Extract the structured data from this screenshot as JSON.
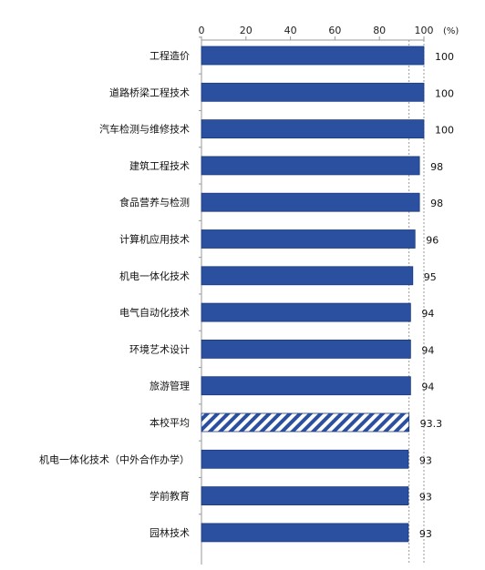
{
  "chart_data": {
    "type": "bar",
    "orientation": "horizontal",
    "unit": "(%)",
    "categories": [
      "工程造价",
      "道路桥梁工程技术",
      "汽车检测与维修技术",
      "建筑工程技术",
      "食品营养与检测",
      "计算机应用技术",
      "机电一体化技术",
      "电气自动化技术",
      "环境艺术设计",
      "旅游管理",
      "本校平均",
      "机电一体化技术（中外合作办学）",
      "学前教育",
      "园林技术"
    ],
    "values": [
      100,
      100,
      100,
      98,
      98,
      96,
      95,
      94,
      94,
      94,
      93.3,
      93,
      93,
      93
    ],
    "value_labels": [
      "100",
      "100",
      "100",
      "98",
      "98",
      "96",
      "95",
      "94",
      "94",
      "94",
      "93.3",
      "93",
      "93",
      "93"
    ],
    "highlight_category": "本校平均",
    "x_ticks": [
      "0",
      "20",
      "40",
      "60",
      "80",
      "100"
    ],
    "xlim": [
      0,
      100
    ],
    "reference_line": 93.3,
    "colors": {
      "bar": "#2c50a0",
      "bar_edge": "#1b3a80",
      "axis": "#999999",
      "reference": "#9a9a9a"
    }
  }
}
